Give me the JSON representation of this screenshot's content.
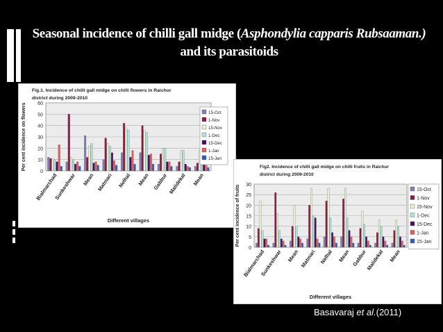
{
  "slide": {
    "title_part1": "Seasonal incidence of chilli gall midge (",
    "title_species": "Asphondylia capparis Rubsaaman.)",
    "title_part2": " and its parasitoids",
    "citation_author": "Basavaraj ",
    "citation_etal": "et al.",
    "citation_year": "(2011)",
    "colors": {
      "background": "#000000",
      "text": "#ffffff"
    }
  },
  "chart_data": [
    {
      "type": "bar",
      "title": "Fig.1. Incidence of chilli gall midge on chilli flowers  in Raichur district during  2009-2010",
      "xlabel": "Different villages",
      "ylabel": "Per cent incidence on flowers",
      "ylim": [
        0,
        60
      ],
      "yticks": [
        0,
        10,
        20,
        30,
        40,
        50,
        60
      ],
      "grid": true,
      "legend_position": "right",
      "categories": [
        "Bialmarchad",
        "Sunkeshwar",
        "Mean",
        "Matmari",
        "Nelhal",
        "Mean",
        "Gabbur",
        "Malidekal",
        "Mean"
      ],
      "series": [
        {
          "name": "15-Oct",
          "color": "#8080b0",
          "values": [
            12,
            8,
            31,
            10,
            16,
            16,
            6,
            4,
            4
          ]
        },
        {
          "name": "1-Nov",
          "color": "#8b1a4a",
          "values": [
            11,
            50,
            12,
            29,
            42,
            40,
            15,
            8,
            7
          ]
        },
        {
          "name": "15-Nov",
          "color": "#e8f0d0",
          "values": [
            11,
            12,
            22,
            24,
            38,
            36,
            20,
            18,
            18
          ]
        },
        {
          "name": "1-Dec",
          "color": "#b0e0e0",
          "values": [
            10,
            10,
            24,
            22,
            36,
            34,
            20,
            18,
            18
          ]
        },
        {
          "name": "15-Dec",
          "color": "#4a1060",
          "values": [
            8,
            6,
            7,
            16,
            12,
            14,
            8,
            6,
            6
          ]
        },
        {
          "name": "1-Jan",
          "color": "#e06060",
          "values": [
            23,
            8,
            8,
            9,
            18,
            15,
            8,
            4,
            5
          ]
        },
        {
          "name": "15-Jan",
          "color": "#3060b0",
          "values": [
            4,
            4,
            5,
            5,
            6,
            6,
            4,
            3,
            3
          ]
        }
      ]
    },
    {
      "type": "bar",
      "title": "Fig2. Incidence of chilli gall midge on chilli fruits in Raichur district during 2009-2010",
      "xlabel": "Different villages",
      "ylabel": "Per cent incidence of fruits",
      "ylim": [
        0,
        30
      ],
      "yticks": [
        0,
        5,
        10,
        15,
        20,
        25,
        30
      ],
      "grid": true,
      "legend_position": "right",
      "categories": [
        "Bialmarchad",
        "Sunkeshwar",
        "Mean",
        "Matmari",
        "Nelhal",
        "Mean",
        "Gabbur",
        "Malidekal",
        "Mean"
      ],
      "series": [
        {
          "name": "15-Oct",
          "color": "#8080b0",
          "values": [
            2,
            2,
            3,
            4,
            5,
            5,
            2,
            2,
            2
          ]
        },
        {
          "name": "1-Nov",
          "color": "#8b1a4a",
          "values": [
            9,
            26,
            10,
            20,
            22,
            23,
            9,
            7,
            8
          ]
        },
        {
          "name": "15-Nov",
          "color": "#e8f0d0",
          "values": [
            22,
            16,
            20,
            28,
            28,
            28,
            17,
            13,
            13
          ]
        },
        {
          "name": "1-Dec",
          "color": "#b0e0e0",
          "values": [
            8,
            8,
            10,
            15,
            14,
            14,
            11,
            10,
            10
          ]
        },
        {
          "name": "15-Dec",
          "color": "#4a1060",
          "values": [
            4,
            4,
            5,
            14,
            7,
            8,
            5,
            5,
            5
          ]
        },
        {
          "name": "1-Jan",
          "color": "#e06060",
          "values": [
            4,
            3,
            4,
            4,
            5,
            5,
            3,
            3,
            3
          ]
        },
        {
          "name": "15-Jan",
          "color": "#3060b0",
          "values": [
            1,
            1,
            2,
            2,
            2,
            2,
            1,
            1,
            1
          ]
        }
      ]
    }
  ]
}
